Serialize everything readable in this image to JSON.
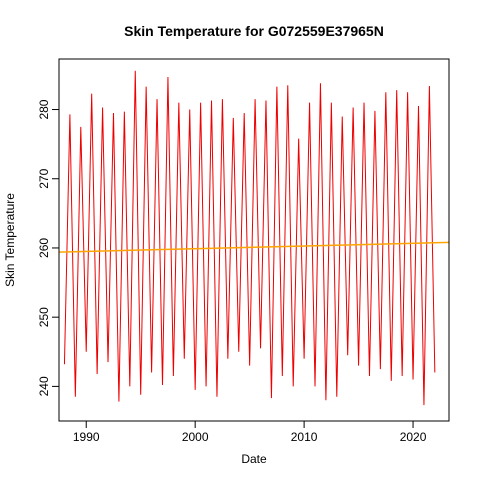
{
  "chart_data": {
    "type": "line",
    "title": "Skin Temperature for G072559E37965N",
    "xlabel": "Date",
    "ylabel": "Skin Temperature",
    "xlim": [
      1987.5,
      2023.3
    ],
    "ylim": [
      235.0,
      287.3
    ],
    "x_ticks": [
      1990,
      2000,
      2010,
      2020
    ],
    "y_ticks": [
      240,
      250,
      260,
      270,
      280
    ],
    "grid": false,
    "legend": "none",
    "colors": {
      "series": "#ee0000",
      "trend": "#ffa500"
    },
    "series": [
      {
        "x": [
          1988.0,
          1988.5,
          1989.0,
          1989.5,
          1990.0,
          1990.5,
          1991.0,
          1991.5,
          1992.0,
          1992.5,
          1993.0,
          1993.5,
          1994.0,
          1994.5,
          1995.0,
          1995.5,
          1996.0,
          1996.5,
          1997.0,
          1997.5,
          1998.0,
          1998.5,
          1999.0,
          1999.5,
          2000.0,
          2000.5,
          2001.0,
          2001.5,
          2002.0,
          2002.5,
          2003.0,
          2003.5,
          2004.0,
          2004.5,
          2005.0,
          2005.5,
          2006.0,
          2006.5,
          2007.0,
          2007.5,
          2008.0,
          2008.5,
          2009.0,
          2009.5,
          2010.0,
          2010.5,
          2011.0,
          2011.5,
          2012.0,
          2012.5,
          2013.0,
          2013.5,
          2014.0,
          2014.5,
          2015.0,
          2015.5,
          2016.0,
          2016.5,
          2017.0,
          2017.5,
          2018.0,
          2018.5,
          2019.0,
          2019.5,
          2020.0,
          2020.5,
          2021.0,
          2021.5,
          2022.0
        ],
        "values": [
          243.2,
          279.3,
          238.5,
          277.5,
          245.0,
          282.3,
          241.8,
          280.3,
          243.5,
          279.5,
          237.8,
          279.7,
          240.0,
          285.6,
          238.8,
          283.3,
          242.0,
          281.5,
          240.2,
          284.7,
          241.5,
          281.0,
          244.0,
          280.0,
          239.5,
          281.0,
          240.0,
          281.3,
          238.5,
          281.5,
          244.0,
          278.8,
          245.0,
          279.5,
          243.0,
          281.5,
          245.5,
          281.3,
          238.3,
          283.3,
          241.5,
          283.5,
          240.0,
          275.8,
          244.0,
          281.0,
          240.0,
          283.8,
          238.0,
          281.0,
          238.5,
          279.0,
          244.5,
          280.3,
          243.0,
          281.0,
          241.5,
          279.8,
          242.5,
          282.5,
          240.8,
          282.8,
          241.5,
          282.5,
          241.0,
          280.5,
          237.3,
          283.4,
          242.0
        ]
      },
      {
        "x": [
          1987.5,
          2023.3
        ],
        "values": [
          259.4,
          260.8
        ]
      }
    ]
  }
}
